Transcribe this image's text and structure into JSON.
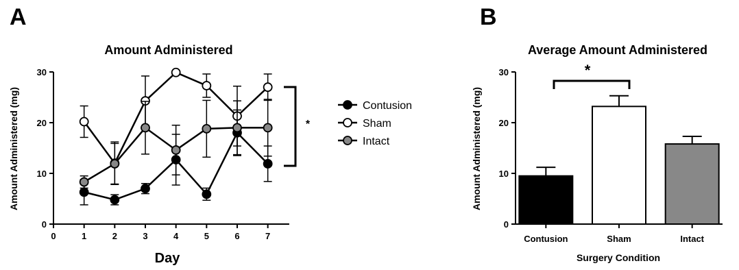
{
  "chart_data": [
    {
      "panel": "A",
      "type": "line",
      "title": "Amount Administered",
      "xlabel": "Day",
      "ylabel": "Amount Administered (mg)",
      "x": [
        1,
        2,
        3,
        4,
        5,
        6,
        7
      ],
      "xticks": [
        "0",
        "1",
        "2",
        "3",
        "4",
        "5",
        "6",
        "7"
      ],
      "yticks": [
        "0",
        "10",
        "20",
        "30"
      ],
      "xlim": [
        0,
        7.7
      ],
      "ylim": [
        0,
        30
      ],
      "legend_position": "right",
      "series": [
        {
          "name": "Contusion",
          "marker_color": "#000000",
          "values": [
            6.3,
            4.8,
            7.0,
            12.7,
            5.9,
            18.0,
            11.9
          ],
          "errors": [
            2.5,
            1.0,
            1.0,
            5.0,
            1.2,
            4.5,
            3.5
          ]
        },
        {
          "name": "Sham",
          "marker_color": "#ffffff",
          "values": [
            20.2,
            12.0,
            24.3,
            29.9,
            27.3,
            21.3,
            27.0
          ],
          "errors": [
            3.1,
            4.2,
            4.9,
            0,
            2.3,
            5.9,
            2.6
          ]
        },
        {
          "name": "Intact",
          "marker_color": "#888888",
          "values": [
            8.3,
            11.9,
            19.0,
            14.6,
            18.8,
            19.0,
            19.0
          ],
          "errors": [
            1.2,
            4.0,
            5.2,
            4.9,
            5.6,
            5.3,
            5.6
          ]
        }
      ],
      "significance": "*"
    },
    {
      "panel": "B",
      "type": "bar",
      "title": "Average Amount Administered",
      "xlabel": "Surgery Condition",
      "ylabel": "Amount Administered (mg)",
      "categories": [
        "Contusion",
        "Sham",
        "Intact"
      ],
      "values": [
        9.5,
        23.2,
        15.8
      ],
      "errors": [
        1.7,
        2.1,
        1.5
      ],
      "colors": [
        "#000000",
        "#ffffff",
        "#888888"
      ],
      "yticks": [
        "0",
        "10",
        "20",
        "30"
      ],
      "ylim": [
        0,
        30
      ],
      "significance": "*"
    }
  ]
}
